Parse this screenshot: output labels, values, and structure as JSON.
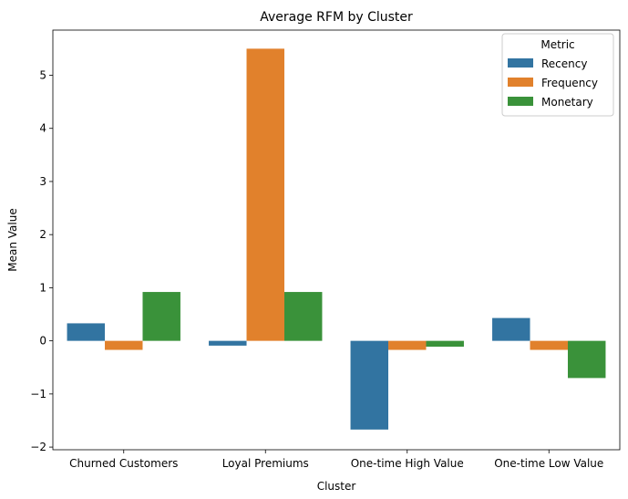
{
  "chart_data": {
    "type": "bar",
    "title": "Average RFM by Cluster",
    "xlabel": "Cluster",
    "ylabel": "Mean Value",
    "categories": [
      "Churned Customers",
      "Loyal Premiums",
      "One-time High Value",
      "One-time Low Value"
    ],
    "series": [
      {
        "name": "Recency",
        "color": "#3274a1",
        "values": [
          0.33,
          -0.09,
          -1.67,
          0.43
        ]
      },
      {
        "name": "Frequency",
        "color": "#e1812c",
        "values": [
          -0.17,
          5.5,
          -0.17,
          -0.17
        ]
      },
      {
        "name": "Monetary",
        "color": "#3a923a",
        "values": [
          0.92,
          0.92,
          -0.11,
          -0.7
        ]
      }
    ],
    "ylim": [
      -2.05,
      5.85
    ],
    "yticks": [
      -2,
      -1,
      0,
      1,
      2,
      3,
      4,
      5
    ],
    "ytick_labels": [
      "−2",
      "−1",
      "0",
      "1",
      "2",
      "3",
      "4",
      "5"
    ],
    "grid": false,
    "legend": {
      "title": "Metric",
      "placement": "top-right"
    }
  }
}
